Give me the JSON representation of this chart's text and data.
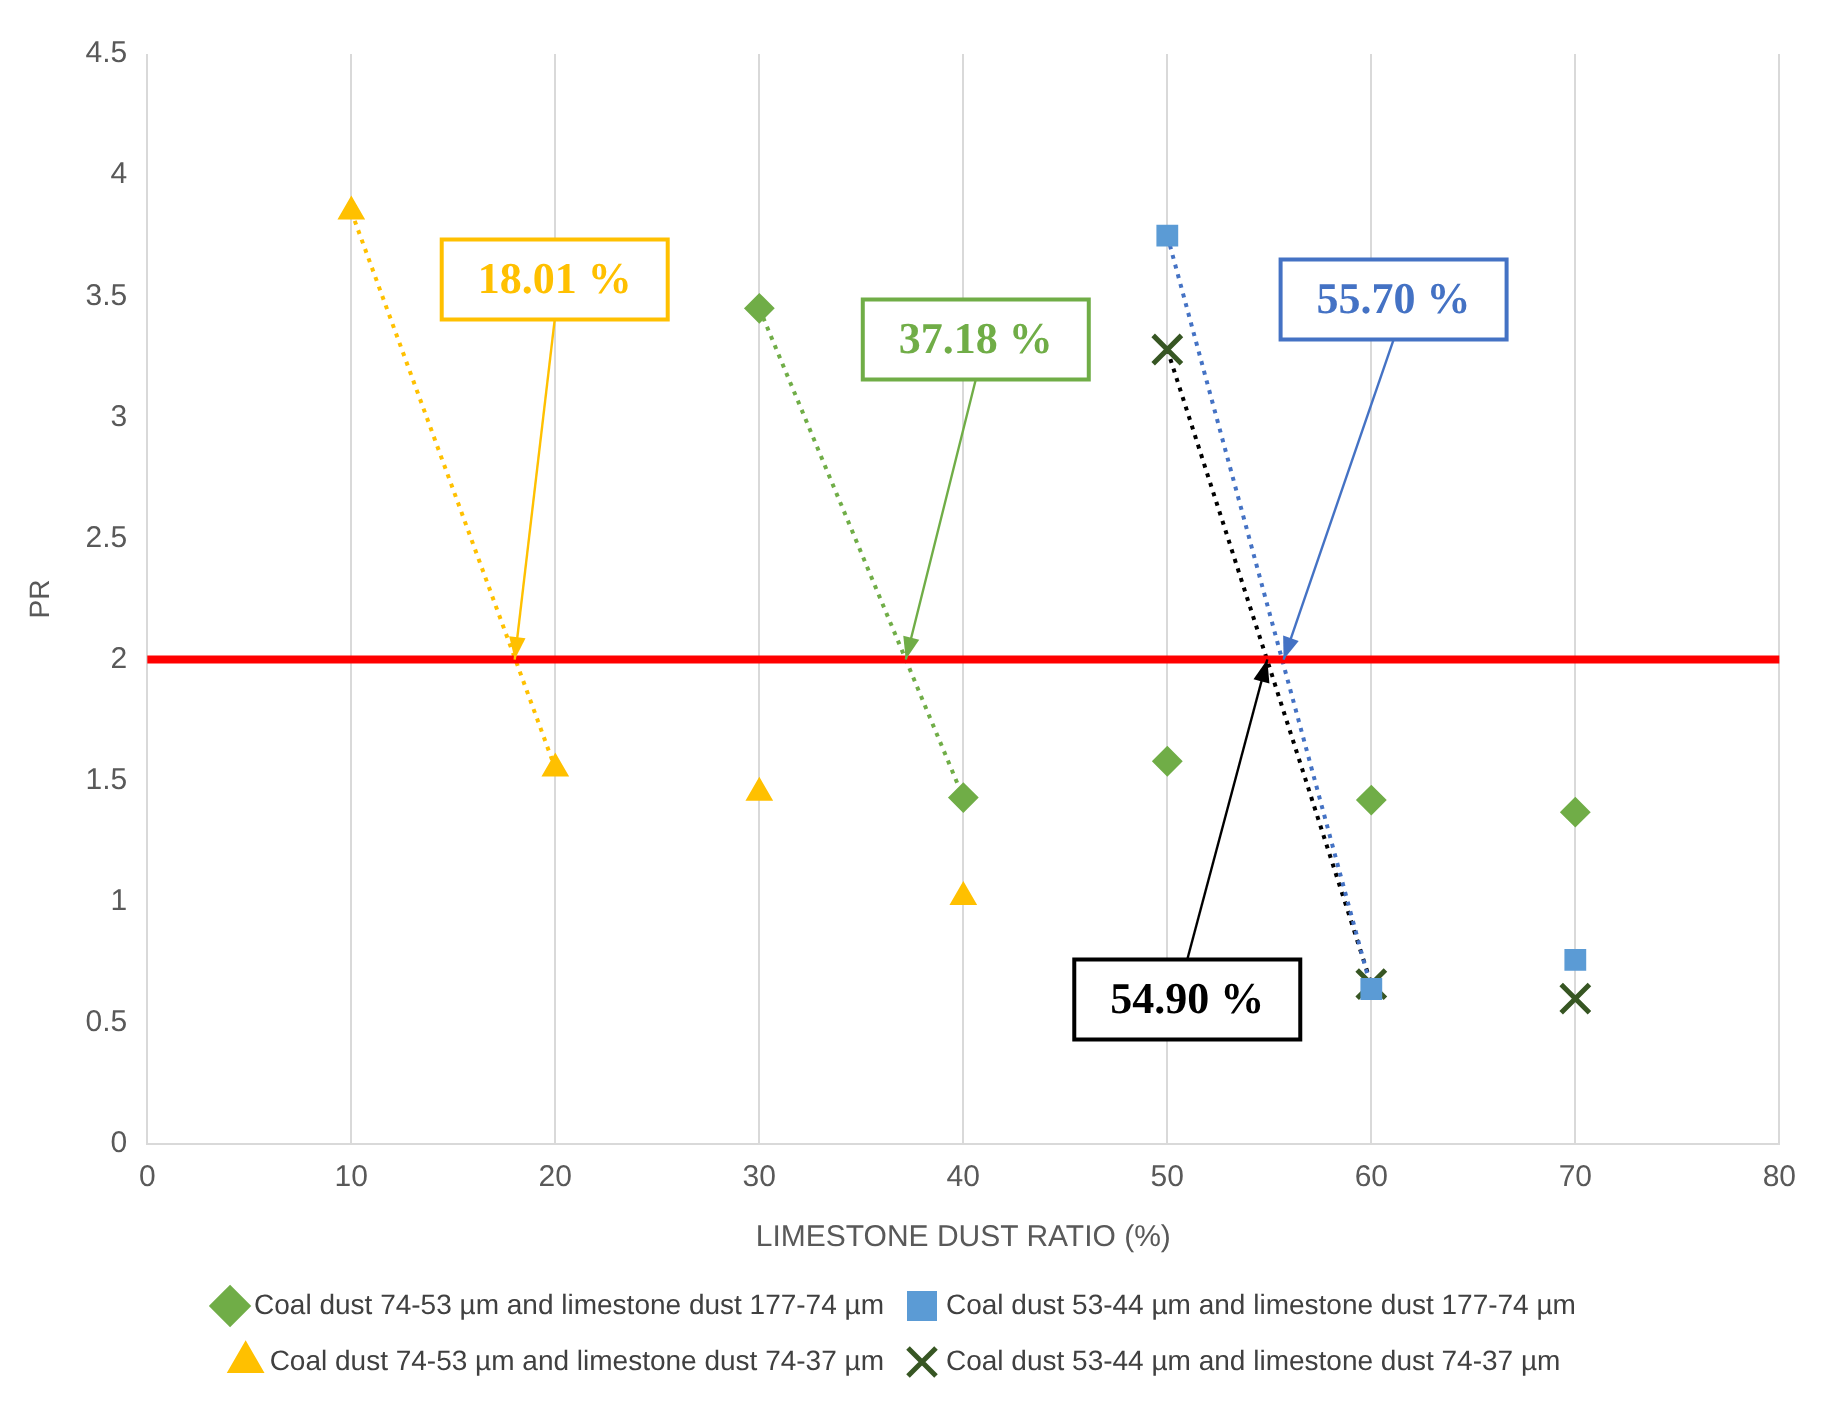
{
  "chart_data": {
    "type": "scatter",
    "xlabel": "LIMESTONE DUST RATIO (%)",
    "ylabel": "PR",
    "xlim": [
      0,
      80
    ],
    "xticks": [
      0,
      10,
      20,
      30,
      40,
      50,
      60,
      70,
      80
    ],
    "ylim": [
      0,
      4.5
    ],
    "yticks": [
      0,
      0.5,
      1,
      1.5,
      2,
      2.5,
      3,
      3.5,
      4,
      4.5
    ],
    "grid": "x",
    "legend": "bottom",
    "series": [
      {
        "name": "Coal dust 74-53 µm and limestone dust 177-74 µm",
        "color": "#70ad47",
        "marker": "diamond",
        "x": [
          30,
          40,
          50,
          60,
          70
        ],
        "values": [
          3.45,
          1.43,
          1.58,
          1.42,
          1.37
        ]
      },
      {
        "name": "Coal dust 53-44 µm and limestone dust 177-74 µm",
        "color": "#5b9bd5",
        "marker": "square",
        "x": [
          50,
          60,
          70
        ],
        "values": [
          3.75,
          0.64,
          0.76
        ]
      },
      {
        "name": "Coal dust 74-53 µm and limestone dust 74-37 µm",
        "color": "#ffc000",
        "marker": "triangle",
        "x": [
          10,
          20,
          30,
          40
        ],
        "values": [
          3.85,
          1.55,
          1.45,
          1.02
        ]
      },
      {
        "name": "Coal dust 53-44 µm and limestone dust 74-37 µm",
        "color": "#375623",
        "marker": "cross",
        "x": [
          50,
          60,
          70
        ],
        "values": [
          3.28,
          0.66,
          0.6
        ]
      },
      {
        "type": "line",
        "color": "#ffc000",
        "marker": "none",
        "line_style": "dotted",
        "x": [
          10,
          20
        ],
        "values": [
          3.85,
          1.55
        ]
      },
      {
        "type": "line",
        "color": "#70ad47",
        "marker": "none",
        "line_style": "dotted",
        "x": [
          30,
          40
        ],
        "values": [
          3.45,
          1.43
        ]
      },
      {
        "type": "line",
        "color": "#4472c4",
        "marker": "none",
        "line_style": "dotted",
        "x": [
          50,
          60
        ],
        "values": [
          3.75,
          0.64
        ]
      },
      {
        "type": "line",
        "color": "#000000",
        "marker": "none",
        "line_style": "dotted",
        "x": [
          50,
          60
        ],
        "values": [
          3.28,
          0.66
        ]
      }
    ],
    "ref_lines": [
      {
        "axis": "y",
        "value": 2,
        "color": "#ff0000"
      }
    ],
    "annotations": [
      {
        "text": "18.01 %",
        "x": 18.01,
        "y": 2
      },
      {
        "text": "37.18 %",
        "x": 37.18,
        "y": 2
      },
      {
        "text": "55.70 %",
        "x": 55.7,
        "y": 2
      },
      {
        "text": "54.90 %",
        "x": 54.9,
        "y": 2
      }
    ]
  }
}
